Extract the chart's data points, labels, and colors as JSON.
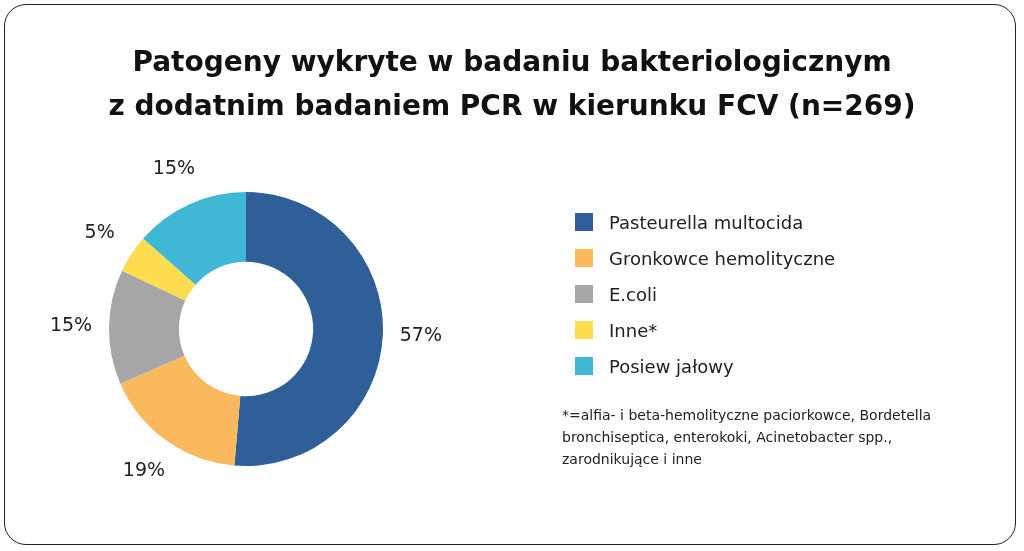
{
  "chart_data": {
    "type": "donut",
    "title": "Patogeny wykryte w badaniu bakteriologicznym\nz dodatnim badaniem PCR w kierunku FCV (n=269)",
    "categories": [
      "Pasteurella multocida",
      "Gronkowce hemolityczne",
      "E.coli",
      "Inne*",
      "Posiew jałowy"
    ],
    "values": [
      57,
      19,
      15,
      5,
      15
    ],
    "colors": [
      "#2e5f98",
      "#fbb95e",
      "#a6a6a6",
      "#fedc4f",
      "#41b7d6"
    ],
    "value_labels": [
      "57%",
      "19%",
      "15%",
      "5%",
      "15%"
    ],
    "legend": "right",
    "annotations": [
      "*=alfia- i beta-hemolityczne paciorkowce, Bordetella bronchiseptica, enterokoki, Acinetobacter spp., zarodnikujące i inne"
    ]
  }
}
